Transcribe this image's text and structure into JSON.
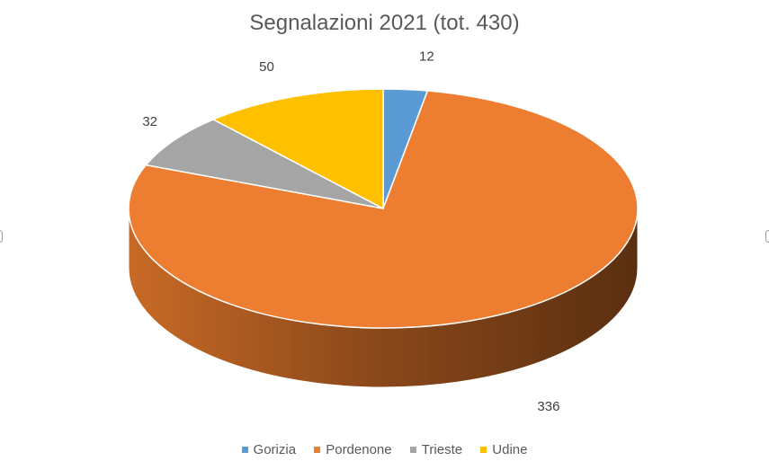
{
  "chart_data": {
    "type": "pie",
    "title": "Segnalazioni 2021 (tot. 430)",
    "categories": [
      "Gorizia",
      "Pordenone",
      "Trieste",
      "Udine"
    ],
    "values": [
      12,
      336,
      32,
      50
    ],
    "colors": [
      "#5B9BD5",
      "#ED7D31",
      "#A5A5A5",
      "#FFC000"
    ],
    "side_color": "#b85e20",
    "data_labels": [
      "12",
      "336",
      "32",
      "50"
    ],
    "legend_position": "bottom"
  }
}
